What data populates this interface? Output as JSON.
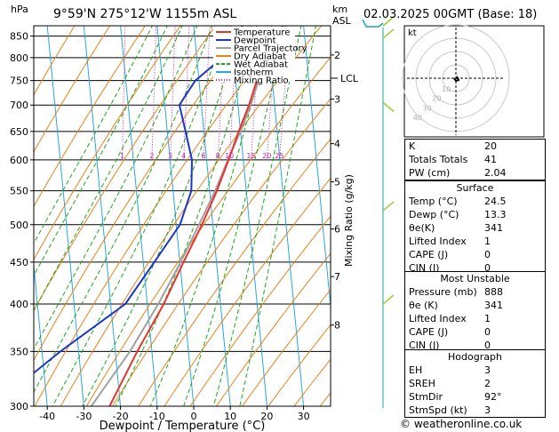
{
  "header": {
    "pressure_unit": "hPa",
    "location": "9°59'N 275°12'W 1155m ASL",
    "height_unit_km": "km",
    "height_unit_asl": "ASL",
    "datetime": "02.03.2025 00GMT (Base: 18)"
  },
  "chart_data": {
    "type": "line",
    "xlabel": "Dewpoint / Temperature (°C)",
    "ylabel": "hPa",
    "y2label": "Mixing Ratio (g/kg)",
    "xlim": [
      -45,
      37
    ],
    "ylim": [
      875,
      300
    ],
    "x_ticks": [
      -40,
      -30,
      -20,
      -10,
      0,
      10,
      20,
      30
    ],
    "p_ticks": [
      300,
      350,
      400,
      450,
      500,
      550,
      600,
      650,
      700,
      750,
      800,
      850
    ],
    "km_ticks": [
      {
        "label": "8",
        "p": 377
      },
      {
        "label": "7",
        "p": 432
      },
      {
        "label": "6",
        "p": 494
      },
      {
        "label": "5",
        "p": 564
      },
      {
        "label": "4",
        "p": 628
      },
      {
        "label": "3",
        "p": 712
      },
      {
        "label": "2",
        "p": 806
      }
    ],
    "lcl": {
      "label": "LCL",
      "p": 755
    },
    "mixing_ratio_labels": [
      "1",
      "2",
      "3",
      "4",
      "6",
      "8",
      "10",
      "15",
      "20",
      "25"
    ],
    "legend": [
      {
        "name": "Temperature",
        "color": "#e8342c"
      },
      {
        "name": "Dewpoint",
        "color": "#1c36c8"
      },
      {
        "name": "Parcel Trajectory",
        "color": "#a0a0a0"
      },
      {
        "name": "Dry Adiabat",
        "color": "#e8821a"
      },
      {
        "name": "Wet Adiabat",
        "color": "#1aa81a"
      },
      {
        "name": "Isotherm",
        "color": "#2aa6e0"
      },
      {
        "name": "Mixing Ratio",
        "color": "#cc22aa"
      }
    ],
    "temperature": [
      [
        875,
        24.5
      ],
      [
        850,
        21
      ],
      [
        800,
        18
      ],
      [
        750,
        15.8
      ],
      [
        700,
        13
      ],
      [
        650,
        9.5
      ],
      [
        600,
        6
      ],
      [
        550,
        2
      ],
      [
        500,
        -3
      ],
      [
        450,
        -9
      ],
      [
        400,
        -15.5
      ],
      [
        350,
        -24
      ],
      [
        300,
        -33
      ]
    ],
    "dewpoint": [
      [
        875,
        13.3
      ],
      [
        850,
        12
      ],
      [
        800,
        7
      ],
      [
        750,
        -1
      ],
      [
        700,
        -6
      ],
      [
        650,
        -5
      ],
      [
        600,
        -4
      ],
      [
        550,
        -5
      ],
      [
        500,
        -9
      ],
      [
        450,
        -17
      ],
      [
        400,
        -26
      ],
      [
        350,
        -45
      ],
      [
        300,
        -65
      ]
    ],
    "parcel": [
      [
        755,
        16.5
      ],
      [
        700,
        13.5
      ],
      [
        650,
        10
      ],
      [
        600,
        5.8
      ],
      [
        550,
        1.5
      ],
      [
        500,
        -3.8
      ],
      [
        450,
        -9.8
      ],
      [
        400,
        -17
      ],
      [
        350,
        -26
      ],
      [
        300,
        -38
      ]
    ]
  },
  "hodograph": {
    "label": "kt",
    "ring_labels": [
      "10",
      "20",
      "30",
      "40"
    ]
  },
  "indices": [
    {
      "k": "K",
      "v": "20"
    },
    {
      "k": "Totals Totals",
      "v": "41"
    },
    {
      "k": "PW (cm)",
      "v": "2.04"
    }
  ],
  "surface": {
    "title": "Surface",
    "rows": [
      {
        "k": "Temp (°C)",
        "v": "24.5"
      },
      {
        "k": "Dewp (°C)",
        "v": "13.3"
      },
      {
        "k": "θe(K)",
        "v": "341"
      },
      {
        "k": "Lifted Index",
        "v": "1"
      },
      {
        "k": "CAPE (J)",
        "v": "0"
      },
      {
        "k": "CIN (J)",
        "v": "0"
      }
    ]
  },
  "most_unstable": {
    "title": "Most Unstable",
    "rows": [
      {
        "k": "Pressure (mb)",
        "v": "888"
      },
      {
        "k": "θe (K)",
        "v": "341"
      },
      {
        "k": "Lifted Index",
        "v": "1"
      },
      {
        "k": "CAPE (J)",
        "v": "0"
      },
      {
        "k": "CIN (J)",
        "v": "0"
      }
    ]
  },
  "hodograph_table": {
    "title": "Hodograph",
    "rows": [
      {
        "k": "EH",
        "v": "3"
      },
      {
        "k": "SREH",
        "v": "2"
      },
      {
        "k": "StmDir",
        "v": "92°"
      },
      {
        "k": "StmSpd (kt)",
        "v": "3"
      }
    ]
  },
  "footer": "© weatheronline.co.uk"
}
